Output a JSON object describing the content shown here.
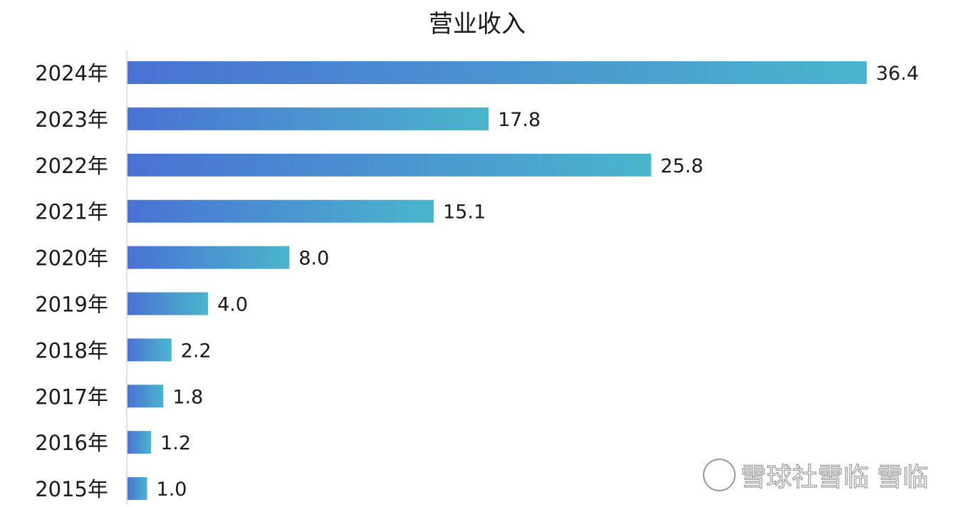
{
  "chart_data": {
    "type": "bar",
    "orientation": "horizontal",
    "title": "营业收入",
    "categories": [
      "2024年",
      "2023年",
      "2022年",
      "2021年",
      "2020年",
      "2019年",
      "2018年",
      "2017年",
      "2016年",
      "2015年"
    ],
    "values": [
      36.4,
      17.8,
      25.8,
      15.1,
      8.0,
      4.0,
      2.2,
      1.8,
      1.2,
      1.0
    ],
    "value_labels": [
      "36.4",
      "17.8",
      "25.8",
      "15.1",
      "8.0",
      "4.0",
      "2.2",
      "1.8",
      "1.2",
      "1.0"
    ],
    "xlabel": "",
    "ylabel": "",
    "xlim": [
      0,
      36.4
    ],
    "grid": false,
    "legend": "none",
    "colors": {
      "bar_gradient_start": "#4a72d4",
      "bar_gradient_end": "#4ab5cc",
      "axis": "#d9d9d9"
    }
  },
  "watermark": {
    "text": "雪球社雪临 雪临"
  }
}
